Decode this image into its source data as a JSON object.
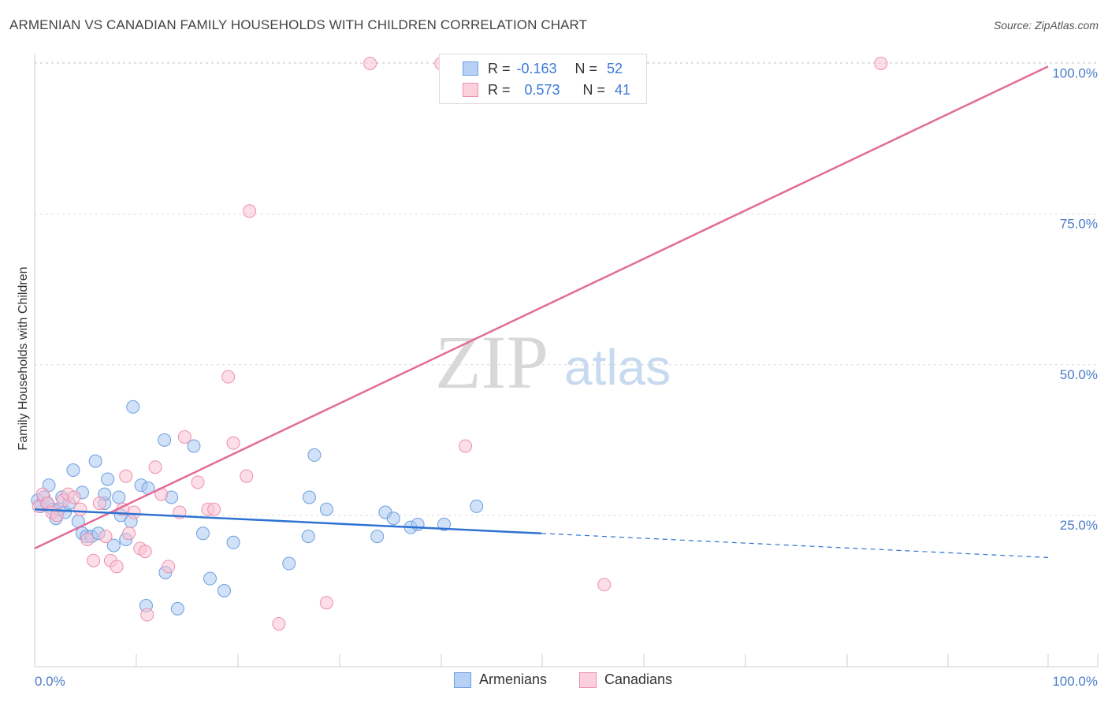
{
  "header": {
    "title": "ARMENIAN VS CANADIAN FAMILY HOUSEHOLDS WITH CHILDREN CORRELATION CHART",
    "source": "Source: ZipAtlas.com"
  },
  "watermark": {
    "zip": "ZIP",
    "atlas": "atlas"
  },
  "legend": {
    "rows": [
      {
        "r_label": "R =",
        "r_value": "-0.163",
        "n_label": "N =",
        "n_value": "52",
        "color": "#9bbdf0"
      },
      {
        "r_label": "R =",
        "r_value": "0.573",
        "n_label": "N =",
        "n_value": "41",
        "color": "#f7b6c8"
      }
    ]
  },
  "bottom_legend": {
    "armenians": "Armenians",
    "canadians": "Canadians"
  },
  "colors": {
    "armenian_fill": "#a9c8f3",
    "armenian_stroke": "#6d9ee0",
    "armenian_line": "#2f72d2",
    "canadian_fill": "#f9c3d3",
    "canadian_stroke": "#ee8fae",
    "canadian_line": "#e36b98"
  },
  "chart_data": {
    "type": "scatter",
    "title": "ARMENIAN VS CANADIAN FAMILY HOUSEHOLDS WITH CHILDREN CORRELATION CHART",
    "xlabel": "",
    "ylabel": "Family Households with Children",
    "xlim": [
      0,
      100
    ],
    "ylim": [
      0,
      104
    ],
    "x_tick_labels": [
      "0.0%",
      "100.0%"
    ],
    "y_ticks": [
      25,
      50,
      75,
      100
    ],
    "y_tick_labels": [
      "25.0%",
      "50.0%",
      "75.0%",
      "100.0%"
    ],
    "grid": "horizontal dashed",
    "series": [
      {
        "name": "Armenians",
        "points": [
          [
            0.3,
            27.5
          ],
          [
            0.6,
            26.5
          ],
          [
            0.9,
            28
          ],
          [
            1.2,
            27
          ],
          [
            1.4,
            30
          ],
          [
            1.8,
            26
          ],
          [
            2.1,
            24.5
          ],
          [
            2.4,
            26
          ],
          [
            2.7,
            28
          ],
          [
            3,
            25.5
          ],
          [
            3.4,
            27
          ],
          [
            3.8,
            32.5
          ],
          [
            4.3,
            24
          ],
          [
            4.7,
            22
          ],
          [
            5.1,
            21.5
          ],
          [
            5.6,
            21.5
          ],
          [
            6,
            34
          ],
          [
            6.3,
            22
          ],
          [
            6.9,
            27
          ],
          [
            7.2,
            31
          ],
          [
            7.8,
            20
          ],
          [
            8.5,
            25
          ],
          [
            9,
            21
          ],
          [
            9.5,
            24
          ],
          [
            8.3,
            28
          ],
          [
            6.9,
            28.5
          ],
          [
            9.7,
            43
          ],
          [
            10.5,
            30
          ],
          [
            11.2,
            29.5
          ],
          [
            12.8,
            37.5
          ],
          [
            13.5,
            28
          ],
          [
            14.1,
            9.5
          ],
          [
            11,
            10
          ],
          [
            12.9,
            15.5
          ],
          [
            15.7,
            36.5
          ],
          [
            16.6,
            22
          ],
          [
            17.3,
            14.5
          ],
          [
            18.7,
            12.5
          ],
          [
            19.6,
            20.5
          ],
          [
            25.1,
            17
          ],
          [
            27,
            21.5
          ],
          [
            27.1,
            28
          ],
          [
            27.6,
            35
          ],
          [
            28.8,
            26
          ],
          [
            33.8,
            21.5
          ],
          [
            34.6,
            25.5
          ],
          [
            35.4,
            24.5
          ],
          [
            37.1,
            23
          ],
          [
            37.8,
            23.5
          ],
          [
            40.4,
            23.5
          ],
          [
            43.6,
            26.5
          ],
          [
            4.7,
            28.8
          ]
        ]
      },
      {
        "name": "Canadians",
        "points": [
          [
            0.4,
            26.5
          ],
          [
            0.8,
            28.5
          ],
          [
            1.3,
            27
          ],
          [
            1.7,
            25.5
          ],
          [
            2.2,
            25
          ],
          [
            2.8,
            27.5
          ],
          [
            3.3,
            28.5
          ],
          [
            3.9,
            28
          ],
          [
            4.5,
            26
          ],
          [
            5.2,
            21
          ],
          [
            5.8,
            17.5
          ],
          [
            6.4,
            27
          ],
          [
            7,
            21.5
          ],
          [
            7.5,
            17.5
          ],
          [
            8.1,
            16.5
          ],
          [
            8.7,
            26
          ],
          [
            9,
            31.5
          ],
          [
            9.3,
            22
          ],
          [
            9.8,
            25.5
          ],
          [
            10.4,
            19.5
          ],
          [
            10.9,
            19
          ],
          [
            11.9,
            33
          ],
          [
            12.5,
            28.5
          ],
          [
            13.2,
            16.5
          ],
          [
            14.3,
            25.5
          ],
          [
            14.8,
            38
          ],
          [
            16.1,
            30.5
          ],
          [
            17.1,
            26
          ],
          [
            17.7,
            26
          ],
          [
            19.1,
            48
          ],
          [
            19.6,
            37
          ],
          [
            20.9,
            31.5
          ],
          [
            21.2,
            75.5
          ],
          [
            24.1,
            7
          ],
          [
            28.8,
            10.5
          ],
          [
            33.1,
            100
          ],
          [
            40.1,
            100
          ],
          [
            42.5,
            36.5
          ],
          [
            56.2,
            13.5
          ],
          [
            83.5,
            100
          ],
          [
            11.1,
            8.5
          ]
        ]
      }
    ],
    "trend_lines": [
      {
        "name": "Armenians",
        "solid_from": [
          0,
          26
        ],
        "solid_to": [
          50,
          22
        ],
        "dashed_to": [
          100,
          18
        ]
      },
      {
        "name": "Canadians",
        "from": [
          0,
          19.5
        ],
        "to": [
          100,
          99.5
        ]
      }
    ]
  }
}
